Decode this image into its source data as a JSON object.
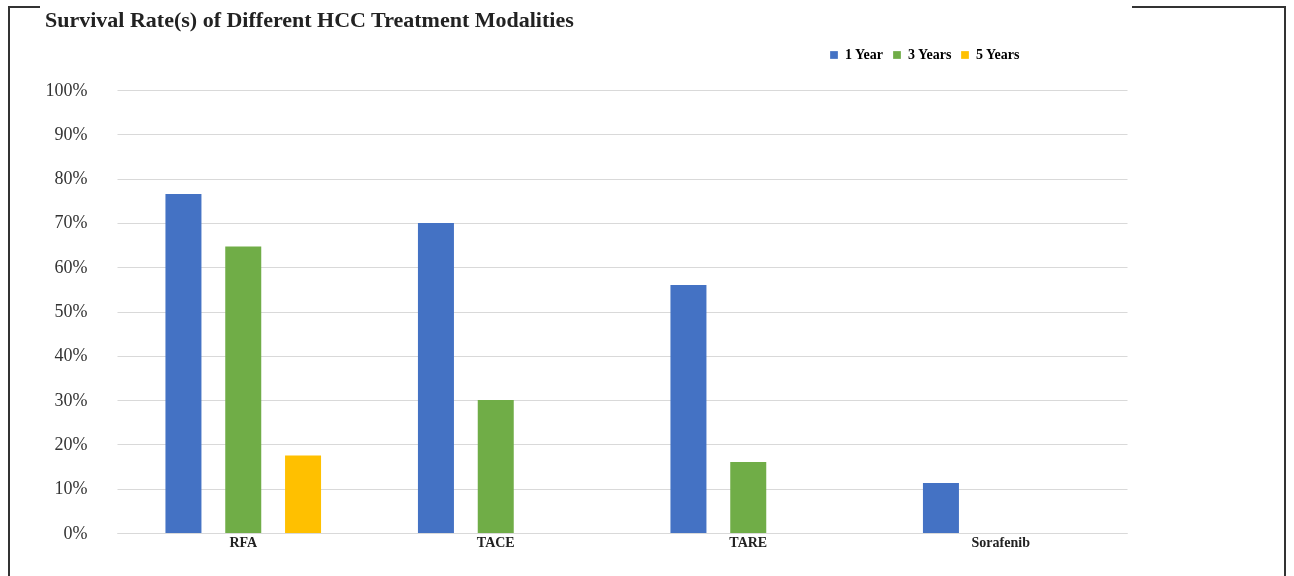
{
  "chart_data": {
    "type": "bar",
    "title": "Survival Rate(s) of Different HCC Treatment Modalities",
    "categories": [
      "RFA",
      "TACE",
      "TARE",
      "Sorafenib"
    ],
    "series": [
      {
        "name": "1 Year",
        "color": "#4472c4",
        "values": [
          76.5,
          70,
          56,
          11.3
        ]
      },
      {
        "name": "3 Years",
        "color": "#70ad47",
        "values": [
          64.7,
          30,
          16,
          null
        ]
      },
      {
        "name": "5 Years",
        "color": "#ffc000",
        "values": [
          17.5,
          null,
          0,
          null
        ]
      }
    ],
    "ylim": [
      0,
      100
    ],
    "yticks": [
      {
        "value": 0,
        "label": "0%"
      },
      {
        "value": 10,
        "label": "10%"
      },
      {
        "value": 20,
        "label": "20%"
      },
      {
        "value": 30,
        "label": "30%"
      },
      {
        "value": 40,
        "label": "40%"
      },
      {
        "value": 50,
        "label": "50%"
      },
      {
        "value": 60,
        "label": "60%"
      },
      {
        "value": 70,
        "label": "70%"
      },
      {
        "value": 80,
        "label": "80%"
      },
      {
        "value": 90,
        "label": "90%"
      },
      {
        "value": 100,
        "label": "100%"
      }
    ],
    "grid": "y",
    "legend": "top right"
  }
}
